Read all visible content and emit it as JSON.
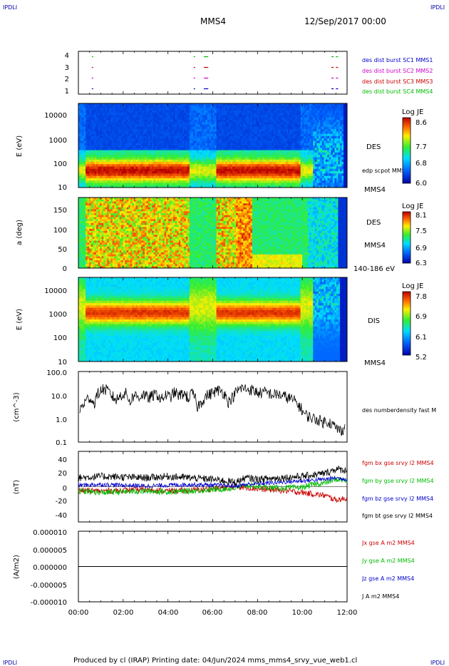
{
  "header": {
    "corner_left": "IPDLI",
    "corner_right": "IPDLI",
    "spacecraft": "MMS4",
    "datetime": "12/Sep/2017 00:00",
    "corner_bottom_left": "IPDLI",
    "corner_bottom_right": "IPDLI"
  },
  "footer": {
    "text": "Produced by cl (IRAP)   Printing date: 04/Jun/2024   mms_mms4_srvy_vue_web1.cl"
  },
  "time_axis": {
    "ticks": [
      "00:00",
      "02:00",
      "04:00",
      "06:00",
      "08:00",
      "10:00",
      "12:00"
    ]
  },
  "colors": {
    "mms1": "#0000cc",
    "mms2": "#cc00cc",
    "mms3": "#cc0000",
    "mms4": "#00bb00",
    "black": "#000000"
  },
  "chart_data": [
    {
      "type": "scatter",
      "panel": "burst-availability",
      "yticks": [
        "1",
        "2",
        "3",
        "4"
      ],
      "ylim": [
        0.5,
        4.5
      ],
      "legend": [
        {
          "name": "des dist burst SC1 MMS1",
          "color": "#0000cc"
        },
        {
          "name": "des dist burst SC2 MMS2",
          "color": "#cc00cc"
        },
        {
          "name": "des dist burst SC3 MMS3",
          "color": "#cc0000"
        },
        {
          "name": "des dist burst SC4 MMS4",
          "color": "#00bb00"
        }
      ],
      "segments": [
        {
          "sc": 1,
          "start_h": 0.6,
          "end_h": 0.65
        },
        {
          "sc": 1,
          "start_h": 5.15,
          "end_h": 5.2
        },
        {
          "sc": 1,
          "start_h": 5.6,
          "end_h": 5.8
        },
        {
          "sc": 1,
          "start_h": 11.3,
          "end_h": 11.4
        },
        {
          "sc": 1,
          "start_h": 11.5,
          "end_h": 11.6
        },
        {
          "sc": 2,
          "start_h": 0.6,
          "end_h": 0.65
        },
        {
          "sc": 2,
          "start_h": 5.15,
          "end_h": 5.2
        },
        {
          "sc": 2,
          "start_h": 5.6,
          "end_h": 5.8
        },
        {
          "sc": 2,
          "start_h": 11.3,
          "end_h": 11.4
        },
        {
          "sc": 2,
          "start_h": 11.5,
          "end_h": 11.6
        },
        {
          "sc": 3,
          "start_h": 0.6,
          "end_h": 0.65
        },
        {
          "sc": 3,
          "start_h": 5.15,
          "end_h": 5.2
        },
        {
          "sc": 3,
          "start_h": 5.6,
          "end_h": 5.8
        },
        {
          "sc": 3,
          "start_h": 11.3,
          "end_h": 11.4
        },
        {
          "sc": 3,
          "start_h": 11.5,
          "end_h": 11.6
        },
        {
          "sc": 4,
          "start_h": 0.6,
          "end_h": 0.65
        },
        {
          "sc": 4,
          "start_h": 5.15,
          "end_h": 5.2
        },
        {
          "sc": 4,
          "start_h": 5.6,
          "end_h": 5.8
        },
        {
          "sc": 4,
          "start_h": 11.3,
          "end_h": 11.4
        },
        {
          "sc": 4,
          "start_h": 11.5,
          "end_h": 11.6
        }
      ]
    },
    {
      "type": "heatmap",
      "panel": "des-energy",
      "ylabel": "E (eV)",
      "yticks": [
        "10",
        "100",
        "1000",
        "10000"
      ],
      "ylim": [
        10,
        30000
      ],
      "scale": "log",
      "right_labels": [
        "DES",
        "edp scpot MMS4",
        "MMS4"
      ],
      "colorbar": {
        "title": "Log JE",
        "ticks": [
          "8.6",
          "7.7",
          "6.8",
          "6.0"
        ],
        "range": [
          6.0,
          8.6
        ]
      }
    },
    {
      "type": "heatmap",
      "panel": "des-pitch-angle",
      "ylabel": "a (deg)",
      "yticks": [
        "0",
        "50",
        "100",
        "150"
      ],
      "ylim": [
        0,
        180
      ],
      "right_labels": [
        "DES",
        "MMS4",
        "140-186 eV"
      ],
      "colorbar": {
        "title": "Log JE",
        "ticks": [
          "8.1",
          "7.5",
          "6.9",
          "6.3"
        ],
        "range": [
          6.3,
          8.1
        ]
      }
    },
    {
      "type": "heatmap",
      "panel": "dis-energy",
      "ylabel": "E (eV)",
      "yticks": [
        "10",
        "100",
        "1000",
        "10000"
      ],
      "ylim": [
        10,
        30000
      ],
      "scale": "log",
      "right_labels": [
        "DIS",
        "MMS4"
      ],
      "colorbar": {
        "title": "Log JE",
        "ticks": [
          "7.8",
          "6.9",
          "6.1",
          "5.2"
        ],
        "range": [
          5.2,
          7.8
        ]
      }
    },
    {
      "type": "line",
      "panel": "density",
      "ylabel": "(cm^-3)",
      "yticks": [
        "0.1",
        "1.0",
        "10.0",
        "100.0"
      ],
      "ylim": [
        0.1,
        100
      ],
      "scale": "log",
      "series": [
        {
          "name": "des numberdensity fast M",
          "color": "#000000",
          "x": [
            0.05,
            0.3,
            0.5,
            0.7,
            0.9,
            1.1,
            1.3,
            1.5,
            1.7,
            1.9,
            2.1,
            2.3,
            2.5,
            2.7,
            2.9,
            3.1,
            3.3,
            3.5,
            3.7,
            3.9,
            4.1,
            4.3,
            4.5,
            4.7,
            4.9,
            5.1,
            5.3,
            5.5,
            5.7,
            5.9,
            6.1,
            6.3,
            6.5,
            6.7,
            6.9,
            7.1,
            7.3,
            7.5,
            7.7,
            7.9,
            8.1,
            8.3,
            8.5,
            8.7,
            8.9,
            9.1,
            9.3,
            9.5,
            9.7,
            9.9,
            10.1,
            10.3,
            10.5,
            10.7,
            10.9,
            11.1,
            11.3,
            11.5,
            11.7,
            11.9
          ],
          "y": [
            2,
            5,
            8,
            4,
            12,
            18,
            15,
            9,
            6,
            10,
            12,
            5,
            10,
            8,
            11,
            7,
            9,
            11,
            6,
            10,
            8,
            13,
            9,
            12,
            7,
            12,
            3,
            5,
            9,
            11,
            14,
            16,
            12,
            5,
            8,
            15,
            20,
            18,
            17,
            14,
            12,
            13,
            12,
            10,
            11,
            9,
            8,
            7,
            5,
            3,
            1.5,
            1.2,
            1.0,
            0.9,
            0.7,
            0.8,
            0.6,
            0.4,
            0.3,
            0.4
          ]
        }
      ]
    },
    {
      "type": "line",
      "panel": "magnetic-field",
      "ylabel": "(nT)",
      "yticks": [
        "-40",
        "-20",
        "0",
        "20",
        "40"
      ],
      "ylim": [
        -48,
        48
      ],
      "series": [
        {
          "name": "fgm bx gse srvy l2 MMS4",
          "color": "#cc0000",
          "x": [
            0,
            1,
            2,
            3,
            4,
            5,
            6,
            7,
            7.5,
            8,
            9,
            10,
            10.5,
            11,
            11.5,
            12
          ],
          "y": [
            -5,
            -6,
            -5,
            -4,
            -6,
            -5,
            -3,
            0,
            -1,
            -3,
            -5,
            -8,
            -10,
            -12,
            -18,
            -16
          ]
        },
        {
          "name": "fgm by gse srvy l2 MMS4",
          "color": "#00bb00",
          "x": [
            0,
            1,
            2,
            3,
            4,
            5,
            6,
            7,
            7.5,
            8,
            9,
            10,
            10.5,
            11,
            11.5,
            12
          ],
          "y": [
            -6,
            -8,
            -7,
            -6,
            -7,
            -6,
            -4,
            -2,
            2,
            0,
            -2,
            -1,
            3,
            5,
            10,
            8
          ]
        },
        {
          "name": "fgm bz gse srvy l2 MMS4",
          "color": "#0000cc",
          "x": [
            0,
            1,
            2,
            3,
            4,
            5,
            6,
            7,
            7.5,
            8,
            9,
            10,
            10.5,
            11,
            11.5,
            12
          ],
          "y": [
            2,
            3,
            2,
            1,
            2,
            3,
            2,
            1,
            3,
            4,
            6,
            8,
            9,
            10,
            12,
            10
          ]
        },
        {
          "name": "fgm bt gse srvy l2 MMS4",
          "color": "#000000",
          "x": [
            0,
            1,
            2,
            3,
            4,
            5,
            6,
            7,
            7.5,
            8,
            9,
            10,
            10.5,
            11,
            11.5,
            12
          ],
          "y": [
            12,
            14,
            13,
            12,
            14,
            12,
            10,
            6,
            12,
            10,
            12,
            14,
            16,
            18,
            24,
            22
          ]
        }
      ]
    },
    {
      "type": "line",
      "panel": "current-density",
      "ylabel": "(A/m2)",
      "yticks": [
        "-0.000010",
        "-0.000005",
        "0.000000",
        "0.000005",
        "0.000010"
      ],
      "ylim": [
        -1e-05,
        1e-05
      ],
      "series": [
        {
          "name": "Jx gse A m2 MMS4",
          "color": "#cc0000",
          "x": [
            0,
            12
          ],
          "y": [
            0,
            0
          ]
        },
        {
          "name": "Jy gse A m2 MMS4",
          "color": "#00bb00",
          "x": [
            0,
            12
          ],
          "y": [
            0,
            0
          ]
        },
        {
          "name": "Jz gse A m2 MMS4",
          "color": "#0000cc",
          "x": [
            0,
            12
          ],
          "y": [
            0,
            0
          ]
        },
        {
          "name": "J A m2 MMS4",
          "color": "#000000",
          "x": [
            0,
            12
          ],
          "y": [
            0,
            0
          ]
        }
      ]
    }
  ]
}
